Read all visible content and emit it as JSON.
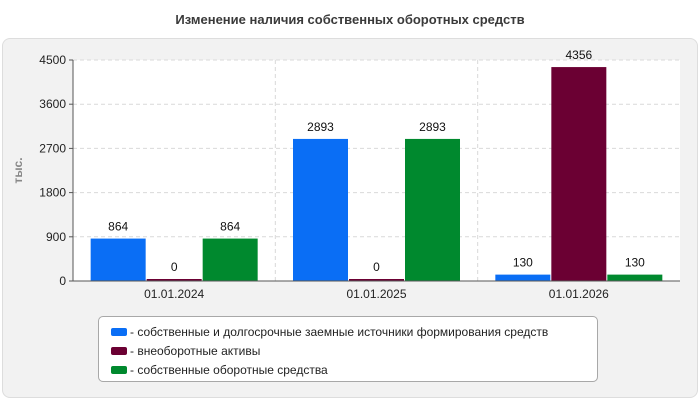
{
  "chart_data": {
    "type": "bar",
    "title": "Изменение наличия собственных оборотных средств",
    "ylabel": "тыс.",
    "xlabel": "",
    "categories": [
      "01.01.2024",
      "01.01.2025",
      "01.01.2026"
    ],
    "series": [
      {
        "name": "- собственные и долгосрочные заемные источники формирования средств",
        "values": [
          864,
          2893,
          130
        ],
        "color": "#0a6ef5"
      },
      {
        "name": "- внеоборотные активы",
        "values": [
          0,
          0,
          4356
        ],
        "color": "#6b0033"
      },
      {
        "name": "- собственные оборотные средства",
        "values": [
          864,
          2893,
          130
        ],
        "color": "#00892e"
      }
    ],
    "ylim": [
      0,
      4500
    ],
    "yticks": [
      "0",
      "900",
      "1800",
      "2700",
      "3600",
      "4500"
    ],
    "grid": true,
    "legend_position": "bottom"
  }
}
